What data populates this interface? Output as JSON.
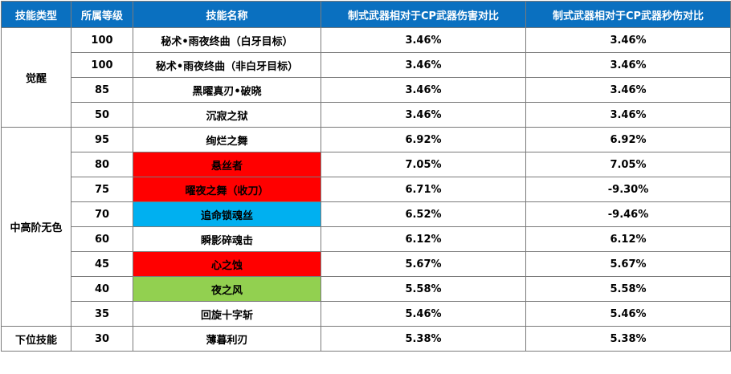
{
  "headers": [
    "技能类型",
    "所属等级",
    "技能名称",
    "制式武器相对于CP武器伤害对比",
    "制式武器相对于CP武器秒伤对比"
  ],
  "groups": [
    {
      "type": "觉醒",
      "rows": [
        {
          "level": "100",
          "name": "秘术•雨夜终曲（白牙目标）",
          "damage": "3.46%",
          "dps": "3.46%",
          "highlight": ""
        },
        {
          "level": "100",
          "name": "秘术•雨夜终曲（非白牙目标）",
          "damage": "3.46%",
          "dps": "3.46%",
          "highlight": ""
        },
        {
          "level": "85",
          "name": "黑曜真刃•破晓",
          "damage": "3.46%",
          "dps": "3.46%",
          "highlight": ""
        },
        {
          "level": "50",
          "name": "沉寂之狱",
          "damage": "3.46%",
          "dps": "3.46%",
          "highlight": ""
        }
      ]
    },
    {
      "type": "中高阶无色",
      "rows": [
        {
          "level": "95",
          "name": "绚烂之舞",
          "damage": "6.92%",
          "dps": "6.92%",
          "highlight": ""
        },
        {
          "level": "80",
          "name": "悬丝者",
          "damage": "7.05%",
          "dps": "7.05%",
          "highlight": "#ff0000"
        },
        {
          "level": "75",
          "name": "曜夜之舞（收刀）",
          "damage": "6.71%",
          "dps": "-9.30%",
          "highlight": "#ff0000"
        },
        {
          "level": "70",
          "name": "追命锁魂丝",
          "damage": "6.52%",
          "dps": "-9.46%",
          "highlight": "#00b0f0"
        },
        {
          "level": "60",
          "name": "瞬影碎魂击",
          "damage": "6.12%",
          "dps": "6.12%",
          "highlight": ""
        },
        {
          "level": "45",
          "name": "心之蚀",
          "damage": "5.67%",
          "dps": "5.67%",
          "highlight": "#ff0000"
        },
        {
          "level": "40",
          "name": "夜之风",
          "damage": "5.58%",
          "dps": "5.58%",
          "highlight": "#92d050"
        },
        {
          "level": "35",
          "name": "回旋十字斩",
          "damage": "5.46%",
          "dps": "5.46%",
          "highlight": ""
        }
      ]
    },
    {
      "type": "下位技能",
      "rows": [
        {
          "level": "30",
          "name": "薄暮利刃",
          "damage": "5.38%",
          "dps": "5.38%",
          "highlight": ""
        }
      ]
    }
  ],
  "colors": {
    "header_bg": "#0a70c0",
    "header_text": "#ffffff",
    "border": "#7a7a7a"
  }
}
